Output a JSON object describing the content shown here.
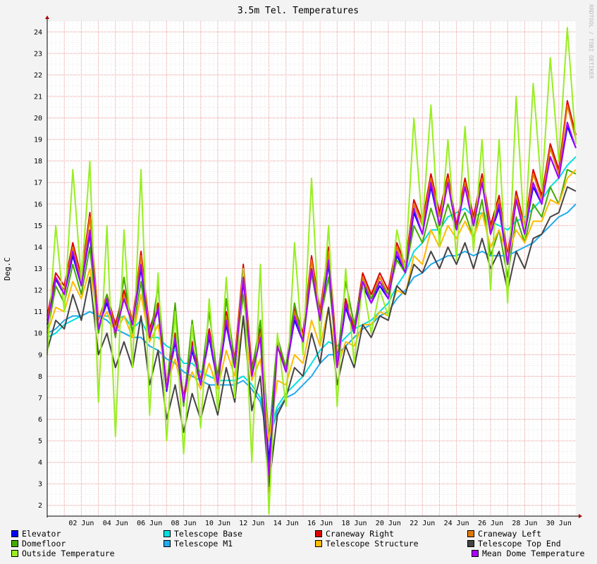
{
  "chart_data": {
    "type": "line",
    "title": "3.5m Tel. Temperatures",
    "ylabel": "Deg.C",
    "watermark": "RRDTOOL / TOBI OETIKER",
    "xlim": [
      0,
      31
    ],
    "ylim": [
      1.5,
      24.5
    ],
    "y_ticks": [
      2,
      3,
      4,
      5,
      6,
      7,
      8,
      9,
      10,
      11,
      12,
      13,
      14,
      15,
      16,
      17,
      18,
      19,
      20,
      21,
      22,
      23,
      24
    ],
    "x_ticks": [
      {
        "x": 2,
        "label": "02 Jun"
      },
      {
        "x": 4,
        "label": "04 Jun"
      },
      {
        "x": 6,
        "label": "06 Jun"
      },
      {
        "x": 8,
        "label": "08 Jun"
      },
      {
        "x": 10,
        "label": "10 Jun"
      },
      {
        "x": 12,
        "label": "12 Jun"
      },
      {
        "x": 14,
        "label": "14 Jun"
      },
      {
        "x": 16,
        "label": "16 Jun"
      },
      {
        "x": 18,
        "label": "18 Jun"
      },
      {
        "x": 20,
        "label": "20 Jun"
      },
      {
        "x": 22,
        "label": "22 Jun"
      },
      {
        "x": 24,
        "label": "24 Jun"
      },
      {
        "x": 26,
        "label": "26 Jun"
      },
      {
        "x": 28,
        "label": "28 Jun"
      },
      {
        "x": 30,
        "label": "30 Jun"
      }
    ],
    "grid": true,
    "legend_position": "bottom",
    "x": [
      0,
      0.5,
      1,
      1.5,
      2,
      2.5,
      3,
      3.5,
      4,
      4.5,
      5,
      5.5,
      6,
      6.5,
      7,
      7.5,
      8,
      8.5,
      9,
      9.5,
      10,
      10.5,
      11,
      11.5,
      12,
      12.5,
      13,
      13.5,
      14,
      14.5,
      15,
      15.5,
      16,
      16.5,
      17,
      17.5,
      18,
      18.5,
      19,
      19.5,
      20,
      20.5,
      21,
      21.5,
      22,
      22.5,
      23,
      23.5,
      24,
      24.5,
      25,
      25.5,
      26,
      26.5,
      27,
      27.5,
      28,
      28.5,
      29,
      29.5,
      30,
      30.5,
      31
    ],
    "series": [
      {
        "name": "Elevator",
        "color": "#0000ff",
        "values": [
          10.4,
          12.5,
          11.8,
          13.6,
          12.2,
          14.6,
          10.3,
          11.4,
          10.0,
          11.6,
          10.4,
          13.0,
          9.8,
          11.1,
          7.3,
          9.6,
          6.8,
          9.2,
          7.6,
          9.8,
          7.6,
          10.4,
          8.4,
          12.4,
          8.0,
          9.8,
          4.0,
          9.4,
          8.2,
          10.6,
          9.6,
          12.8,
          10.6,
          13.2,
          8.4,
          11.2,
          10.0,
          12.2,
          11.4,
          12.2,
          11.6,
          13.6,
          12.8,
          15.6,
          14.6,
          16.8,
          15.0,
          17.0,
          14.8,
          16.8,
          15.0,
          17.0,
          14.6,
          15.8,
          13.2,
          16.2,
          14.6,
          16.8,
          16.0,
          18.2,
          17.2,
          19.6,
          18.6
        ]
      },
      {
        "name": "Telescope Base",
        "color": "#00e0e0",
        "values": [
          9.8,
          10.0,
          10.4,
          10.6,
          10.8,
          11.0,
          10.8,
          10.8,
          10.6,
          10.8,
          10.2,
          10.6,
          9.8,
          9.8,
          9.4,
          9.2,
          8.6,
          8.6,
          8.2,
          8.0,
          7.8,
          7.8,
          7.8,
          8.0,
          7.6,
          7.0,
          5.4,
          6.6,
          7.2,
          7.6,
          8.0,
          8.6,
          9.2,
          9.6,
          9.4,
          9.8,
          10.2,
          10.4,
          10.6,
          11.0,
          11.4,
          12.2,
          12.8,
          13.8,
          14.2,
          14.8,
          14.8,
          15.4,
          15.6,
          15.8,
          15.4,
          15.6,
          15.2,
          15.0,
          14.8,
          15.2,
          15.4,
          15.8,
          16.2,
          16.8,
          17.2,
          17.8,
          18.2
        ]
      },
      {
        "name": "Craneway Right",
        "color": "#dd0000",
        "values": [
          10.8,
          12.8,
          12.2,
          14.2,
          12.6,
          15.6,
          10.6,
          11.8,
          10.4,
          12.0,
          10.6,
          13.8,
          10.2,
          11.4,
          7.6,
          10.0,
          7.0,
          9.6,
          7.8,
          10.2,
          8.0,
          11.0,
          8.8,
          13.2,
          8.4,
          10.2,
          2.8,
          9.6,
          8.4,
          11.2,
          10.0,
          13.6,
          11.0,
          14.0,
          8.8,
          11.6,
          10.2,
          12.8,
          11.8,
          12.8,
          12.0,
          14.2,
          13.2,
          16.2,
          15.2,
          17.4,
          15.6,
          17.4,
          15.0,
          17.2,
          15.4,
          17.4,
          15.0,
          16.4,
          13.6,
          16.6,
          15.0,
          17.6,
          16.4,
          18.8,
          17.6,
          20.8,
          19.2
        ]
      },
      {
        "name": "Craneway Left",
        "color": "#e07800",
        "values": [
          10.6,
          12.6,
          12.0,
          14.0,
          12.4,
          15.4,
          10.6,
          11.8,
          10.2,
          11.8,
          10.6,
          13.6,
          10.0,
          11.2,
          7.4,
          9.8,
          6.8,
          9.4,
          7.6,
          10.0,
          7.8,
          10.8,
          8.6,
          13.0,
          8.2,
          10.0,
          2.6,
          9.4,
          8.2,
          11.0,
          9.8,
          13.4,
          10.8,
          13.8,
          8.6,
          11.4,
          10.0,
          12.6,
          11.6,
          12.6,
          11.8,
          14.0,
          13.0,
          16.0,
          15.0,
          17.2,
          15.4,
          17.2,
          14.8,
          17.0,
          15.2,
          17.2,
          14.8,
          16.2,
          13.4,
          16.4,
          14.8,
          17.4,
          16.2,
          18.6,
          17.4,
          20.6,
          19.0
        ]
      },
      {
        "name": "Domefloor",
        "color": "#44aa00",
        "values": [
          10.0,
          12.2,
          11.4,
          13.2,
          11.8,
          14.0,
          10.0,
          11.8,
          9.8,
          12.6,
          10.0,
          12.4,
          9.6,
          12.2,
          7.4,
          11.4,
          6.6,
          10.6,
          7.6,
          11.0,
          7.8,
          11.6,
          8.6,
          11.8,
          8.2,
          10.6,
          5.0,
          9.8,
          8.4,
          11.4,
          9.6,
          12.8,
          10.6,
          12.6,
          8.6,
          12.4,
          10.4,
          12.4,
          11.6,
          12.4,
          11.8,
          13.4,
          12.8,
          15.0,
          14.2,
          15.8,
          14.6,
          16.0,
          14.8,
          15.6,
          14.4,
          16.2,
          13.6,
          14.8,
          12.6,
          15.4,
          14.2,
          16.0,
          15.4,
          16.8,
          16.0,
          17.6,
          17.4
        ]
      },
      {
        "name": "Telescope M1",
        "color": "#22aaee",
        "values": [
          10.0,
          10.2,
          10.6,
          10.8,
          10.8,
          11.0,
          10.8,
          10.6,
          10.2,
          10.0,
          9.8,
          9.8,
          9.4,
          9.2,
          8.8,
          8.6,
          8.2,
          8.0,
          7.8,
          7.6,
          7.6,
          7.6,
          7.6,
          7.8,
          7.4,
          6.8,
          5.0,
          6.4,
          7.0,
          7.2,
          7.6,
          8.0,
          8.6,
          9.0,
          9.0,
          9.4,
          9.8,
          10.2,
          10.4,
          10.8,
          11.0,
          11.6,
          12.0,
          12.6,
          12.8,
          13.2,
          13.4,
          13.6,
          13.6,
          13.8,
          13.6,
          13.8,
          13.6,
          13.6,
          13.6,
          13.8,
          14.0,
          14.2,
          14.6,
          15.0,
          15.4,
          15.6,
          16.0
        ]
      },
      {
        "name": "Telescope Structure",
        "color": "#ffbb00",
        "values": [
          10.0,
          11.2,
          11.0,
          12.4,
          11.6,
          13.0,
          10.4,
          11.0,
          10.0,
          10.8,
          9.8,
          11.8,
          9.6,
          10.4,
          7.6,
          8.8,
          7.0,
          8.2,
          7.4,
          8.6,
          7.4,
          9.2,
          8.0,
          10.6,
          7.8,
          8.8,
          5.0,
          7.8,
          7.6,
          9.0,
          8.6,
          10.6,
          9.4,
          11.2,
          8.4,
          9.6,
          9.4,
          10.4,
          10.4,
          11.0,
          10.8,
          12.0,
          11.8,
          13.6,
          13.2,
          14.8,
          14.0,
          15.0,
          14.4,
          15.2,
          14.4,
          15.6,
          14.0,
          14.8,
          13.6,
          14.8,
          14.2,
          15.2,
          15.2,
          16.2,
          16.0,
          17.2,
          17.6
        ]
      },
      {
        "name": "Telescope Top End",
        "color": "#444444",
        "values": [
          9.2,
          10.6,
          10.2,
          11.8,
          10.6,
          12.6,
          9.0,
          10.0,
          8.4,
          9.6,
          8.4,
          10.8,
          7.6,
          9.2,
          6.0,
          7.6,
          5.4,
          7.2,
          6.0,
          7.6,
          6.2,
          8.4,
          6.8,
          10.8,
          6.4,
          8.0,
          2.9,
          6.2,
          7.0,
          8.4,
          8.0,
          10.0,
          8.6,
          11.2,
          7.6,
          9.4,
          8.4,
          10.4,
          9.8,
          10.8,
          10.6,
          12.2,
          11.8,
          13.2,
          12.8,
          13.8,
          13.0,
          14.0,
          13.2,
          14.2,
          13.0,
          14.4,
          13.0,
          13.8,
          12.0,
          13.8,
          13.0,
          14.4,
          14.6,
          15.4,
          15.6,
          16.8,
          16.6
        ]
      },
      {
        "name": "Outside Temperature",
        "color": "#99ee22",
        "values": [
          9.0,
          15.0,
          11.0,
          17.6,
          12.4,
          18.0,
          6.8,
          15.0,
          5.2,
          14.8,
          8.4,
          17.6,
          6.2,
          12.8,
          5.0,
          11.0,
          4.4,
          10.4,
          5.6,
          11.6,
          6.4,
          12.6,
          7.0,
          13.0,
          4.0,
          13.2,
          1.6,
          10.0,
          6.6,
          14.2,
          9.0,
          17.2,
          9.6,
          15.0,
          6.6,
          13.0,
          8.6,
          12.4,
          10.0,
          12.0,
          10.8,
          14.8,
          13.0,
          20.0,
          15.0,
          20.6,
          14.0,
          19.0,
          13.4,
          19.6,
          13.8,
          19.0,
          12.0,
          19.0,
          11.4,
          21.0,
          14.4,
          21.6,
          16.6,
          22.8,
          18.0,
          24.2,
          18.8
        ]
      },
      {
        "name": "Mean Dome Temperature",
        "color": "#aa00ff",
        "values": [
          10.4,
          12.6,
          11.8,
          13.8,
          12.2,
          14.8,
          10.2,
          11.6,
          10.0,
          11.6,
          10.4,
          13.2,
          9.8,
          11.2,
          7.4,
          9.8,
          6.8,
          9.4,
          7.6,
          10.0,
          7.6,
          10.6,
          8.4,
          12.6,
          8.0,
          9.8,
          3.4,
          9.4,
          8.2,
          10.8,
          9.6,
          13.0,
          10.6,
          13.4,
          8.4,
          11.4,
          10.0,
          12.4,
          11.4,
          12.4,
          11.6,
          13.8,
          12.8,
          15.8,
          14.6,
          17.0,
          15.0,
          17.0,
          14.8,
          16.8,
          15.0,
          17.0,
          14.6,
          16.0,
          13.2,
          16.2,
          14.6,
          17.0,
          16.0,
          18.2,
          17.2,
          19.8,
          18.6
        ]
      }
    ]
  }
}
